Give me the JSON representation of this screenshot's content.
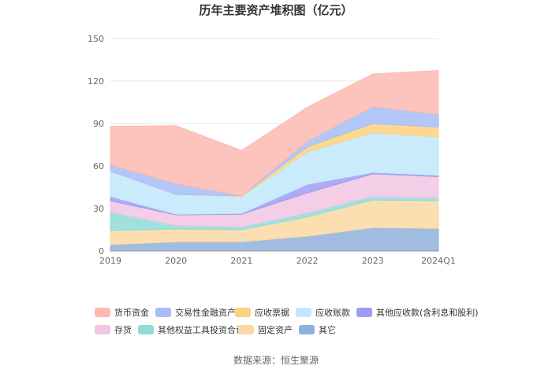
{
  "chart_data": {
    "type": "area",
    "stacked": true,
    "title": "历年主要资产堆积图（亿元）",
    "categories": [
      "2019",
      "2020",
      "2021",
      "2022",
      "2023",
      "2024Q1"
    ],
    "ylim": [
      0,
      150
    ],
    "yticks": [
      "0",
      "30",
      "60",
      "90",
      "120",
      "150"
    ],
    "grid": true,
    "legend_position": "bottom",
    "series": [
      {
        "name": "其它",
        "color": "#8fb0dc",
        "values": [
          4.5,
          6.5,
          6.5,
          10.5,
          16.5,
          16
        ]
      },
      {
        "name": "固定资产",
        "color": "#fbd9a3",
        "values": [
          10,
          9,
          8.5,
          13.5,
          19.5,
          19.5
        ]
      },
      {
        "name": "其他权益工具投资合计",
        "color": "#8fdcd8",
        "values": [
          13,
          2.5,
          2,
          3,
          2.5,
          2
        ]
      },
      {
        "name": "存货",
        "color": "#f1c6e2",
        "values": [
          8,
          7.5,
          9,
          14,
          16,
          15
        ]
      },
      {
        "name": "其他应收款(含利息和股利)",
        "color": "#9e9cf2",
        "values": [
          3,
          0.5,
          0.5,
          6,
          1,
          1
        ]
      },
      {
        "name": "应收账款",
        "color": "#bfe8fb",
        "values": [
          18,
          14,
          12,
          23,
          28,
          27
        ]
      },
      {
        "name": "应收票据",
        "color": "#fdd27c",
        "values": [
          0,
          0,
          0.5,
          3.5,
          6.5,
          7
        ]
      },
      {
        "name": "交易性金融资产",
        "color": "#a6bdf8",
        "values": [
          4.5,
          7.5,
          0,
          4,
          12,
          9
        ]
      },
      {
        "name": "货币资金",
        "color": "#fdbab1",
        "values": [
          27,
          41,
          32,
          24,
          23,
          31
        ]
      }
    ],
    "legend_order": [
      "货币资金",
      "交易性金融资产",
      "应收票据",
      "应收账款",
      "其他应收款(含利息和股利)",
      "存货",
      "其他权益工具投资合计",
      "固定资产",
      "其它"
    ],
    "source": "数据来源：恒生聚源"
  }
}
